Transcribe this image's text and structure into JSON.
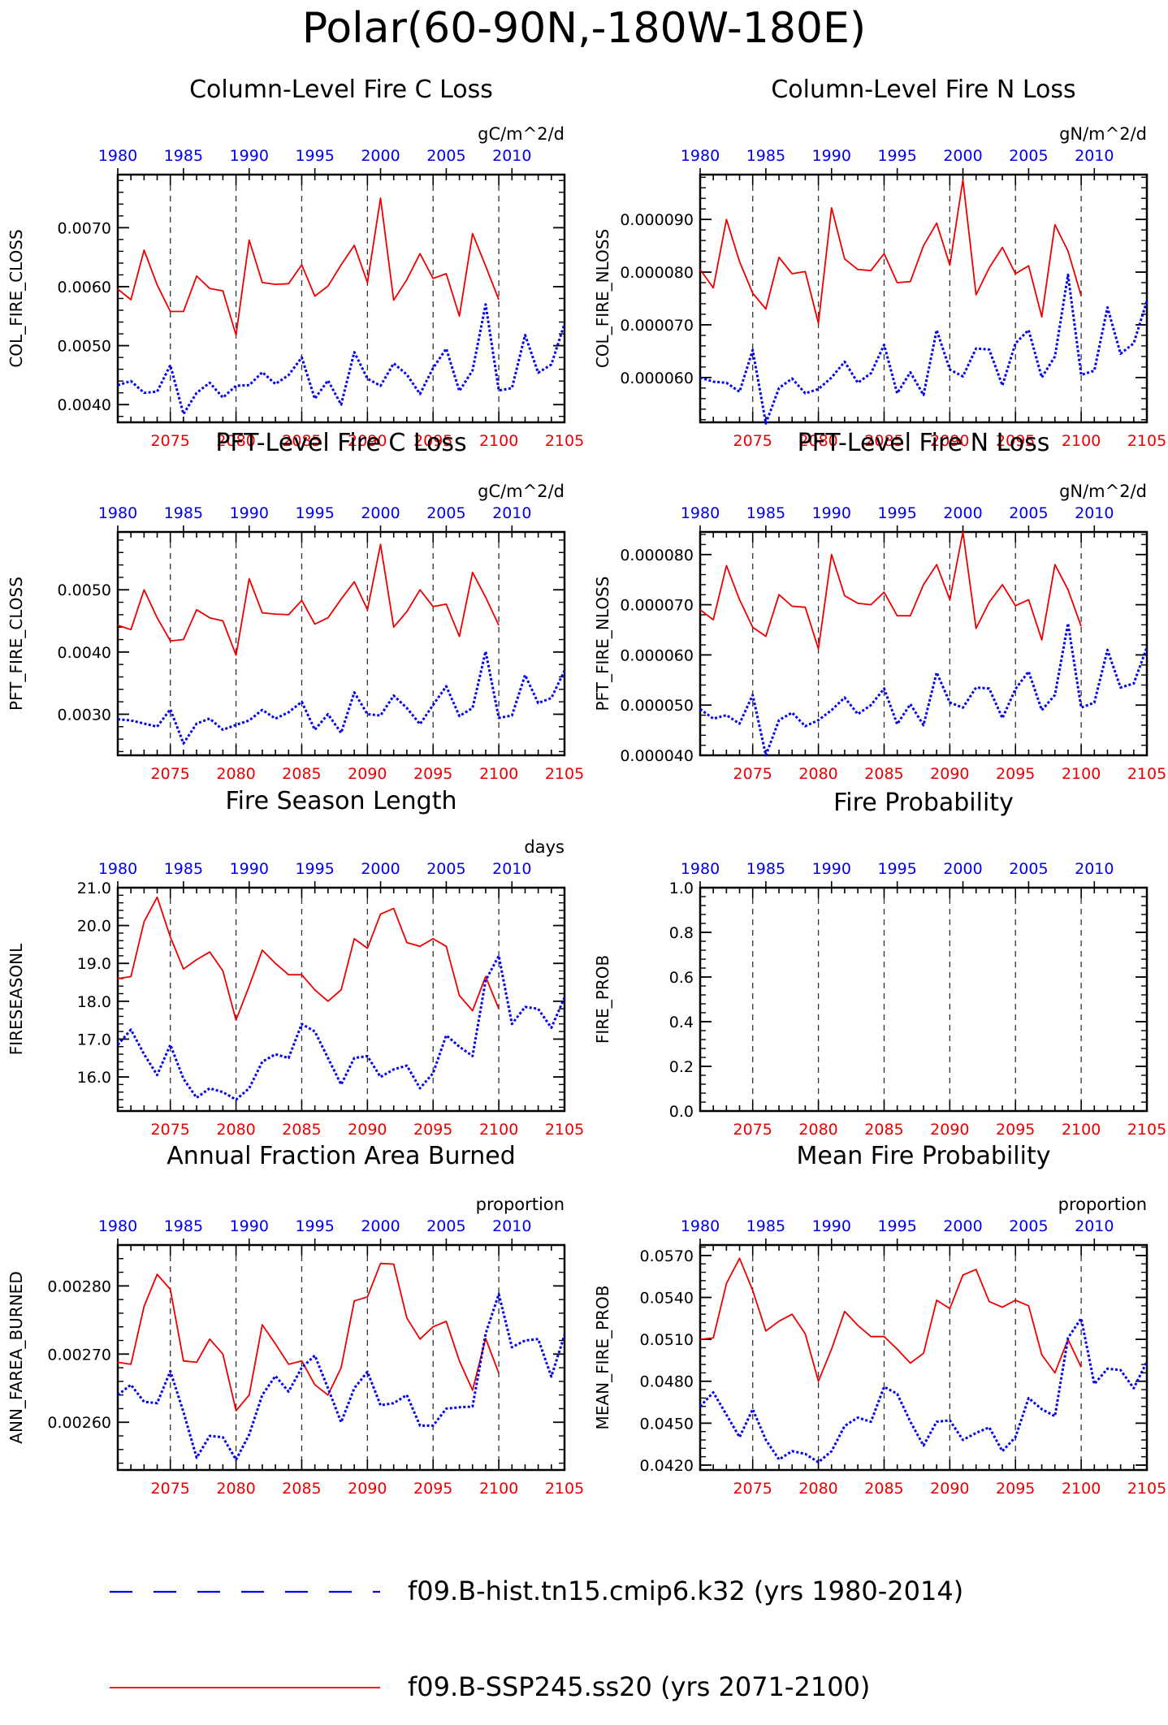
{
  "title": "Polar(60-90N,-180W-180E)",
  "colors": {
    "hist": "#0000ee",
    "ssp": "#ee0000",
    "axis": "#000000"
  },
  "legend": [
    {
      "label": "f09.B-hist.tn15.cmip6.k32 (yrs 1980-2014)",
      "color": "#0000ee",
      "style": "dash"
    },
    {
      "label": "f09.B-SSP245.ss20 (yrs 2071-2100)",
      "color": "#ee0000",
      "style": "solid"
    }
  ],
  "chart_data": [
    {
      "type": "line",
      "title": "Column-Level Fire C Loss",
      "units": "gC/m^2/d",
      "ylabel": "COL_FIRE_CLOSS",
      "ylim": [
        0.0037,
        0.0079
      ],
      "yticks": [
        "0.0040",
        "0.0050",
        "0.0060",
        "0.0070"
      ],
      "yticks_num": [
        0.004,
        0.005,
        0.006,
        0.007
      ],
      "x_bottom": {
        "range": [
          2071,
          2105
        ],
        "ticks": [
          2075,
          2080,
          2085,
          2090,
          2095,
          2100,
          2105
        ]
      },
      "x_top": {
        "ticks": [
          1980,
          1985,
          1990,
          1995,
          2000,
          2005,
          2010
        ]
      },
      "series": [
        {
          "name": "f09.B-SSP245.ss20",
          "x_start": 2071,
          "values": [
            0.00596,
            0.00578,
            0.00662,
            0.00603,
            0.00558,
            0.00558,
            0.00618,
            0.00597,
            0.00593,
            0.00518,
            0.00679,
            0.00607,
            0.00604,
            0.00605,
            0.00637,
            0.00584,
            0.00601,
            0.00637,
            0.0067,
            0.00607,
            0.0075,
            0.00577,
            0.00612,
            0.00656,
            0.00614,
            0.00622,
            0.0055,
            0.0069,
            0.00635,
            0.00578
          ]
        },
        {
          "name": "f09.B-hist.tn15.cmip6.k32",
          "x_start": 2071,
          "values": [
            0.00433,
            0.0044,
            0.0042,
            0.00422,
            0.00467,
            0.00384,
            0.0042,
            0.00437,
            0.00412,
            0.00432,
            0.00433,
            0.00455,
            0.00435,
            0.0045,
            0.0048,
            0.0041,
            0.00441,
            0.004,
            0.00489,
            0.00444,
            0.00432,
            0.0047,
            0.00451,
            0.00418,
            0.00462,
            0.00495,
            0.00423,
            0.00458,
            0.0057,
            0.00424,
            0.00428,
            0.00518,
            0.00454,
            0.00468,
            0.00537
          ]
        }
      ]
    },
    {
      "type": "line",
      "title": "Column-Level Fire N Loss",
      "units": "gN/m^2/d",
      "ylabel": "COL_FIRE_NLOSS",
      "ylim": [
        5.15e-05,
        9.85e-05
      ],
      "yticks": [
        "0.000060",
        "0.000070",
        "0.000080",
        "0.000090"
      ],
      "yticks_num": [
        6e-05,
        7e-05,
        8e-05,
        9e-05
      ],
      "x_bottom": {
        "range": [
          2071,
          2105
        ],
        "ticks": [
          2075,
          2080,
          2085,
          2090,
          2095,
          2100,
          2105
        ]
      },
      "x_top": {
        "ticks": [
          1980,
          1985,
          1990,
          1995,
          2000,
          2005,
          2010
        ]
      },
      "series": [
        {
          "name": "f09.B-SSP245.ss20",
          "x_start": 2071,
          "values": [
            8.05e-05,
            7.7e-05,
            9e-05,
            8.2e-05,
            7.6e-05,
            7.3e-05,
            8.28e-05,
            7.97e-05,
            8.01e-05,
            7.03e-05,
            9.22e-05,
            8.25e-05,
            8.05e-05,
            8.03e-05,
            8.35e-05,
            7.8e-05,
            7.82e-05,
            8.5e-05,
            8.93e-05,
            8.13e-05,
            9.75e-05,
            7.57e-05,
            8.08e-05,
            8.47e-05,
            7.97e-05,
            8.12e-05,
            7.15e-05,
            8.9e-05,
            8.4e-05,
            7.55e-05
          ]
        },
        {
          "name": "f09.B-hist.tn15.cmip6.k32",
          "x_start": 2071,
          "values": [
            6e-05,
            5.92e-05,
            5.9e-05,
            5.73e-05,
            6.52e-05,
            5.13e-05,
            5.8e-05,
            5.98e-05,
            5.7e-05,
            5.78e-05,
            6e-05,
            6.3e-05,
            5.9e-05,
            6.08e-05,
            6.62e-05,
            5.7e-05,
            6.1e-05,
            5.67e-05,
            6.9e-05,
            6.15e-05,
            6.02e-05,
            6.55e-05,
            6.53e-05,
            5.85e-05,
            6.65e-05,
            6.9e-05,
            6e-05,
            6.4e-05,
            7.95e-05,
            6.05e-05,
            6.13e-05,
            7.33e-05,
            6.45e-05,
            6.65e-05,
            7.45e-05
          ]
        }
      ]
    },
    {
      "type": "line",
      "title": "PFT-Level Fire C Loss",
      "units": "gC/m^2/d",
      "ylabel": "PFT_FIRE_CLOSS",
      "ylim": [
        0.00234,
        0.00593
      ],
      "yticks": [
        "0.0030",
        "0.0040",
        "0.0050"
      ],
      "yticks_num": [
        0.003,
        0.004,
        0.005
      ],
      "x_bottom": {
        "range": [
          2071,
          2105
        ],
        "ticks": [
          2075,
          2080,
          2085,
          2090,
          2095,
          2100,
          2105
        ]
      },
      "x_top": {
        "ticks": [
          1980,
          1985,
          1990,
          1995,
          2000,
          2005,
          2010
        ]
      },
      "series": [
        {
          "name": "f09.B-SSP245.ss20",
          "x_start": 2071,
          "values": [
            0.00443,
            0.00436,
            0.005,
            0.00455,
            0.00418,
            0.0042,
            0.00468,
            0.00455,
            0.0045,
            0.00395,
            0.00518,
            0.00463,
            0.00461,
            0.0046,
            0.00483,
            0.00445,
            0.00455,
            0.00485,
            0.00513,
            0.00468,
            0.00573,
            0.0044,
            0.00465,
            0.005,
            0.00473,
            0.00477,
            0.00425,
            0.00528,
            0.00488,
            0.00443
          ]
        },
        {
          "name": "f09.B-hist.tn15.cmip6.k32",
          "x_start": 2071,
          "values": [
            0.00292,
            0.0029,
            0.00285,
            0.0028,
            0.00308,
            0.00253,
            0.00285,
            0.00293,
            0.00275,
            0.00283,
            0.0029,
            0.00307,
            0.00293,
            0.00303,
            0.0032,
            0.00275,
            0.003,
            0.0027,
            0.00335,
            0.003,
            0.00298,
            0.0033,
            0.0031,
            0.00284,
            0.00315,
            0.00345,
            0.00297,
            0.0031,
            0.00401,
            0.00294,
            0.00298,
            0.00363,
            0.00318,
            0.00326,
            0.0037
          ]
        }
      ]
    },
    {
      "type": "line",
      "title": "PFT-Level Fire N Loss",
      "units": "gN/m^2/d",
      "ylabel": "PFT_FIRE_NLOSS",
      "ylim": [
        4e-05,
        8.45e-05
      ],
      "yticks": [
        "0.000040",
        "0.000050",
        "0.000060",
        "0.000070",
        "0.000080"
      ],
      "yticks_num": [
        4e-05,
        5e-05,
        6e-05,
        7e-05,
        8e-05
      ],
      "x_bottom": {
        "range": [
          2071,
          2105
        ],
        "ticks": [
          2075,
          2080,
          2085,
          2090,
          2095,
          2100,
          2105
        ]
      },
      "x_top": {
        "ticks": [
          1980,
          1985,
          1990,
          1995,
          2000,
          2005,
          2010
        ]
      },
      "series": [
        {
          "name": "f09.B-SSP245.ss20",
          "x_start": 2071,
          "values": [
            6.9e-05,
            6.7e-05,
            7.78e-05,
            7.1e-05,
            6.55e-05,
            6.37e-05,
            7.2e-05,
            6.97e-05,
            6.95e-05,
            6.12e-05,
            8e-05,
            7.18e-05,
            7.03e-05,
            7e-05,
            7.25e-05,
            6.78e-05,
            6.78e-05,
            7.4e-05,
            7.8e-05,
            7.1e-05,
            8.45e-05,
            6.53e-05,
            7.05e-05,
            7.4e-05,
            6.98e-05,
            7.1e-05,
            6.3e-05,
            7.8e-05,
            7.3e-05,
            6.57e-05
          ]
        },
        {
          "name": "f09.B-hist.tn15.cmip6.k32",
          "x_start": 2071,
          "values": [
            4.92e-05,
            4.73e-05,
            4.8e-05,
            4.63e-05,
            5.2e-05,
            4e-05,
            4.7e-05,
            4.85e-05,
            4.58e-05,
            4.7e-05,
            4.9e-05,
            5.15e-05,
            4.82e-05,
            5e-05,
            5.33e-05,
            4.62e-05,
            5.02e-05,
            4.6e-05,
            5.65e-05,
            5.05e-05,
            4.95e-05,
            5.35e-05,
            5.33e-05,
            4.74e-05,
            5.32e-05,
            5.67e-05,
            4.9e-05,
            5.2e-05,
            6.63e-05,
            4.95e-05,
            5.05e-05,
            6.1e-05,
            5.35e-05,
            5.43e-05,
            6.15e-05
          ]
        }
      ]
    },
    {
      "type": "line",
      "title": "Fire Season Length",
      "units": "days",
      "ylabel": "FIRESEASONL",
      "ylim": [
        15.1,
        21.0
      ],
      "yticks": [
        "16.0",
        "17.0",
        "18.0",
        "19.0",
        "20.0",
        "21.0"
      ],
      "yticks_num": [
        16,
        17,
        18,
        19,
        20,
        21
      ],
      "x_bottom": {
        "range": [
          2071,
          2105
        ],
        "ticks": [
          2075,
          2080,
          2085,
          2090,
          2095,
          2100,
          2105
        ]
      },
      "x_top": {
        "ticks": [
          1980,
          1985,
          1990,
          1995,
          2000,
          2005,
          2010
        ]
      },
      "series": [
        {
          "name": "f09.B-SSP245.ss20",
          "x_start": 2071,
          "values": [
            18.6,
            18.65,
            20.1,
            20.75,
            19.7,
            18.85,
            19.1,
            19.3,
            18.8,
            17.5,
            18.4,
            19.35,
            19.0,
            18.7,
            18.7,
            18.3,
            18.0,
            18.3,
            19.65,
            19.4,
            20.3,
            20.45,
            19.55,
            19.45,
            19.65,
            19.45,
            18.15,
            17.75,
            18.65,
            17.8
          ]
        },
        {
          "name": "f09.B-hist.tn15.cmip6.k32",
          "x_start": 2071,
          "values": [
            16.85,
            17.25,
            16.6,
            16.05,
            16.85,
            15.95,
            15.45,
            15.7,
            15.6,
            15.4,
            15.7,
            16.4,
            16.6,
            16.5,
            17.4,
            17.2,
            16.5,
            15.8,
            16.5,
            16.55,
            16.0,
            16.2,
            16.3,
            15.7,
            16.1,
            17.1,
            16.8,
            16.55,
            18.55,
            19.2,
            17.4,
            17.85,
            17.8,
            17.3,
            18.1
          ]
        }
      ]
    },
    {
      "type": "line",
      "title": "Fire Probability",
      "units": "",
      "ylabel": "FIRE_PROB",
      "ylim": [
        0.0,
        1.0
      ],
      "yticks": [
        "0.0",
        "0.2",
        "0.4",
        "0.6",
        "0.8",
        "1.0"
      ],
      "yticks_num": [
        0.0,
        0.2,
        0.4,
        0.6,
        0.8,
        1.0
      ],
      "x_bottom": {
        "range": [
          2071,
          2105
        ],
        "ticks": [
          2075,
          2080,
          2085,
          2090,
          2095,
          2100,
          2105
        ]
      },
      "x_top": {
        "ticks": [
          1980,
          1985,
          1990,
          1995,
          2000,
          2005,
          2010
        ]
      },
      "series": []
    },
    {
      "type": "line",
      "title": "Annual Fraction Area Burned",
      "units": "proportion",
      "ylabel": "ANN_FAREA_BURNED",
      "ylim": [
        0.00253,
        0.00286
      ],
      "yticks": [
        "0.00260",
        "0.00270",
        "0.00280"
      ],
      "yticks_num": [
        0.0026,
        0.0027,
        0.0028
      ],
      "x_bottom": {
        "range": [
          2071,
          2105
        ],
        "ticks": [
          2075,
          2080,
          2085,
          2090,
          2095,
          2100,
          2105
        ]
      },
      "x_top": {
        "ticks": [
          1980,
          1985,
          1990,
          1995,
          2000,
          2005,
          2010
        ]
      },
      "series": [
        {
          "name": "f09.B-SSP245.ss20",
          "x_start": 2071,
          "values": [
            0.002688,
            0.002685,
            0.00277,
            0.002817,
            0.002795,
            0.00269,
            0.002688,
            0.002722,
            0.0027,
            0.002617,
            0.00264,
            0.002743,
            0.002715,
            0.002685,
            0.00269,
            0.002655,
            0.00264,
            0.00268,
            0.002778,
            0.002784,
            0.002833,
            0.002832,
            0.002753,
            0.002722,
            0.00274,
            0.002748,
            0.00269,
            0.002647,
            0.002723,
            0.002672
          ]
        },
        {
          "name": "f09.B-hist.tn15.cmip6.k32",
          "x_start": 2071,
          "values": [
            0.00264,
            0.002655,
            0.00263,
            0.002628,
            0.002675,
            0.002615,
            0.002548,
            0.00258,
            0.002578,
            0.002545,
            0.002582,
            0.00264,
            0.002668,
            0.002645,
            0.00268,
            0.002698,
            0.00265,
            0.0026,
            0.00265,
            0.002674,
            0.002625,
            0.002628,
            0.00264,
            0.002595,
            0.002595,
            0.00262,
            0.002622,
            0.002623,
            0.00273,
            0.002788,
            0.00271,
            0.00272,
            0.002722,
            0.002667,
            0.002728
          ]
        }
      ]
    },
    {
      "type": "line",
      "title": "Mean Fire Probability",
      "units": "proportion",
      "ylabel": "MEAN_FIRE_PROB",
      "ylim": [
        0.04165,
        0.05775
      ],
      "yticks": [
        "0.0420",
        "0.0450",
        "0.0480",
        "0.0510",
        "0.0540",
        "0.0570"
      ],
      "yticks_num": [
        0.042,
        0.045,
        0.048,
        0.051,
        0.054,
        0.057
      ],
      "x_bottom": {
        "range": [
          2071,
          2105
        ],
        "ticks": [
          2075,
          2080,
          2085,
          2090,
          2095,
          2100,
          2105
        ]
      },
      "x_top": {
        "ticks": [
          1980,
          1985,
          1990,
          1995,
          2000,
          2005,
          2010
        ]
      },
      "series": [
        {
          "name": "f09.B-SSP245.ss20",
          "x_start": 2071,
          "values": [
            0.051,
            0.0511,
            0.055,
            0.0568,
            0.0545,
            0.0516,
            0.0523,
            0.0528,
            0.0514,
            0.048,
            0.0503,
            0.053,
            0.052,
            0.0512,
            0.0512,
            0.0503,
            0.0493,
            0.05,
            0.0538,
            0.0532,
            0.0556,
            0.056,
            0.0537,
            0.0533,
            0.0538,
            0.0534,
            0.0499,
            0.0486,
            0.051,
            0.049
          ]
        },
        {
          "name": "f09.B-hist.tn15.cmip6.k32",
          "x_start": 2071,
          "values": [
            0.0462,
            0.0472,
            0.0456,
            0.044,
            0.046,
            0.0438,
            0.0424,
            0.043,
            0.0428,
            0.0422,
            0.043,
            0.0448,
            0.0454,
            0.0451,
            0.0476,
            0.0471,
            0.0451,
            0.0434,
            0.0451,
            0.0452,
            0.0438,
            0.0443,
            0.0447,
            0.043,
            0.044,
            0.0468,
            0.046,
            0.0455,
            0.0511,
            0.0525,
            0.0478,
            0.0489,
            0.0488,
            0.0475,
            0.0494
          ]
        }
      ]
    }
  ]
}
